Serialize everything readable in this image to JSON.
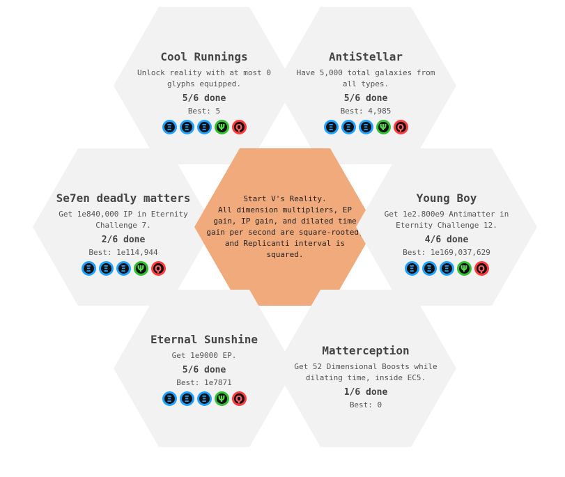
{
  "center": {
    "description": "Start V's Reality.\nAll dimension multipliers, EP gain, IP gain, and dilated time gain per second are square-rooted, and Replicanti interval is squared."
  },
  "glyph_symbols": {
    "blue": "Ξ",
    "green": "Ψ",
    "red": "Ϙ"
  },
  "colors": {
    "center_fill": "#f1aa7c",
    "hex_fill": "#f2f2f2",
    "blue_ring": "#1fa2ff",
    "green_ring": "#30c22f",
    "red_ring": "#ff3a3a"
  },
  "achievements": [
    {
      "id": "cool-runnings",
      "title": "Cool Runnings",
      "description": "Unlock reality with at most 0 glyphs equipped.",
      "done": "5/6 done",
      "best": "Best: 5",
      "glyphs": [
        "blue",
        "blue",
        "blue",
        "green",
        "red"
      ]
    },
    {
      "id": "antistellar",
      "title": "AntiStellar",
      "description": "Have 5,000 total galaxies from all types.",
      "done": "5/6 done",
      "best": "Best: 4,985",
      "glyphs": [
        "blue",
        "blue",
        "blue",
        "green",
        "red"
      ]
    },
    {
      "id": "se7en-deadly-matters",
      "title": "Se7en deadly matters",
      "description": "Get 1e840,000 IP in Eternity Challenge 7.",
      "done": "2/6 done",
      "best": "Best: 1e114,944",
      "glyphs": [
        "blue",
        "blue",
        "blue",
        "green",
        "red"
      ]
    },
    {
      "id": "young-boy",
      "title": "Young Boy",
      "description": "Get 1e2.800e9 Antimatter in Eternity Challenge 12.",
      "done": "4/6 done",
      "best": "Best: 1e169,037,629",
      "glyphs": [
        "blue",
        "blue",
        "blue",
        "green",
        "red"
      ]
    },
    {
      "id": "eternal-sunshine",
      "title": "Eternal Sunshine",
      "description": "Get 1e9000 EP.",
      "done": "5/6 done",
      "best": "Best: 1e7871",
      "glyphs": [
        "blue",
        "blue",
        "blue",
        "green",
        "red"
      ]
    },
    {
      "id": "matterception",
      "title": "Matterception",
      "description": "Get 52 Dimensional Boosts while dilating time, inside EC5.",
      "done": "1/6 done",
      "best": "Best: 0",
      "glyphs": []
    }
  ]
}
